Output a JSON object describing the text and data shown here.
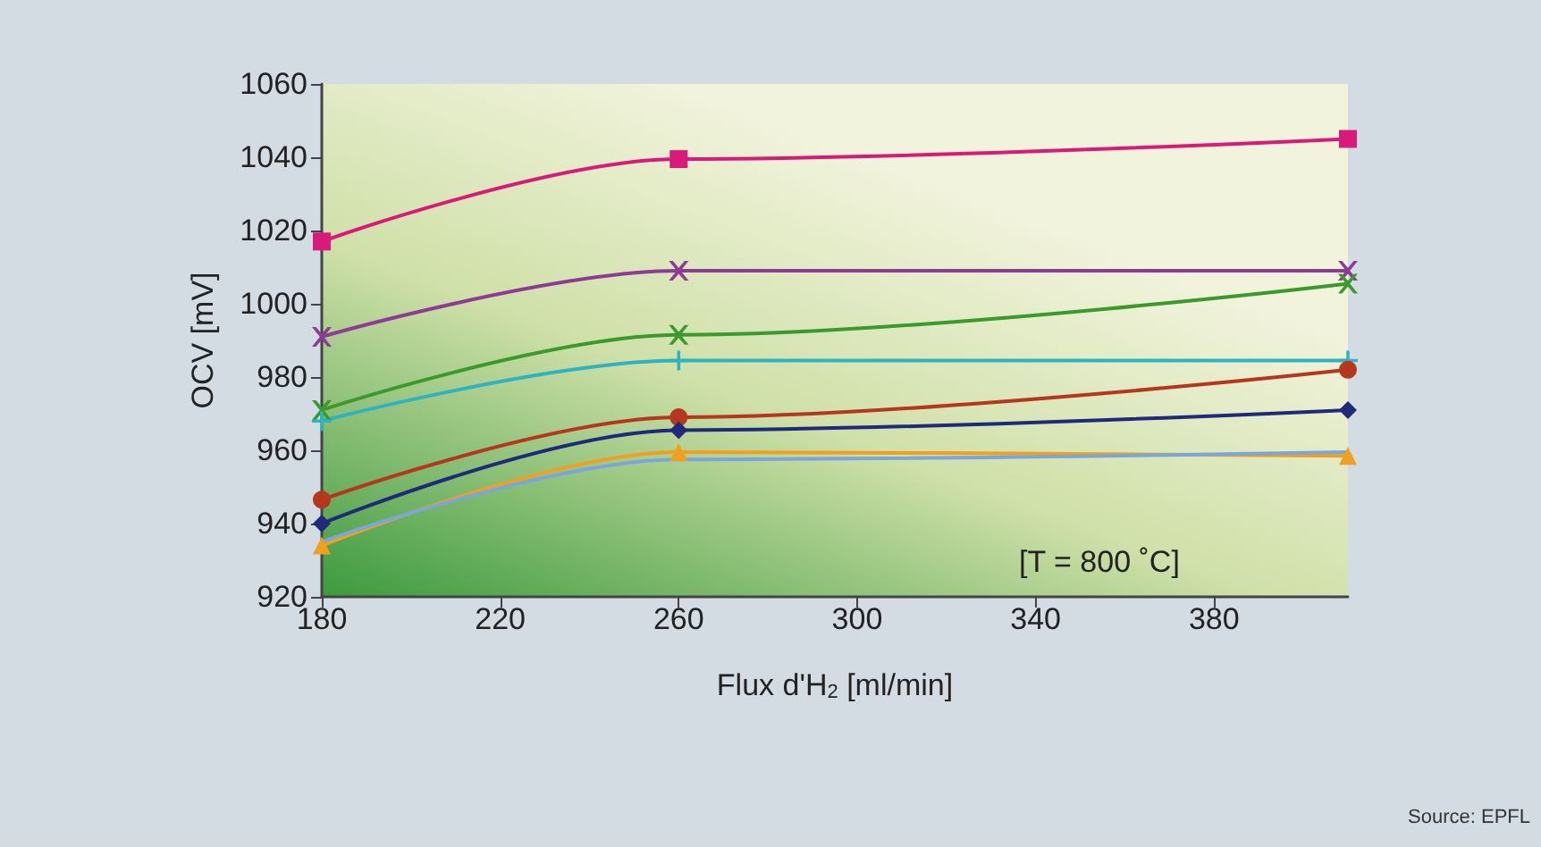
{
  "chart_data": {
    "type": "line",
    "xlabel": "Flux d'H$_{2}$ [ml/min]",
    "ylabel": "OCV [mV]",
    "annotations": [
      "[T = 800 ˚C]",
      "Source: EPFL"
    ],
    "xlim": [
      180,
      410
    ],
    "xticks": [
      180,
      220,
      260,
      300,
      340,
      380
    ],
    "ylim": [
      920,
      1060
    ],
    "yticks": [
      920,
      940,
      960,
      980,
      1000,
      1020,
      1040,
      1060
    ],
    "grid": false,
    "line_style": "solid",
    "x": [
      180,
      260,
      410
    ],
    "series": [
      {
        "color": "#d81b7a",
        "marker": "square",
        "values": [
          1017,
          1039.5,
          1045
        ]
      },
      {
        "color": "#8e3b96",
        "marker": "cross",
        "values": [
          991,
          1009,
          1009
        ]
      },
      {
        "color": "#3a9a2c",
        "marker": "cross",
        "values": [
          971,
          991.5,
          1005.5
        ]
      },
      {
        "color": "#2fb3c0",
        "marker": "plus",
        "values": [
          968,
          984.5,
          984.5
        ]
      },
      {
        "color": "#b5371e",
        "marker": "circle",
        "values": [
          946.5,
          969,
          982
        ]
      },
      {
        "color": "#202a7a",
        "marker": "diamond",
        "values": [
          940,
          965.5,
          971
        ]
      },
      {
        "color": "#f0a020",
        "marker": "triangle",
        "values": [
          934,
          959.5,
          958.5
        ]
      },
      {
        "color": "#7aa6dc",
        "marker": "none",
        "values": [
          935,
          957.5,
          959.5
        ]
      }
    ]
  }
}
